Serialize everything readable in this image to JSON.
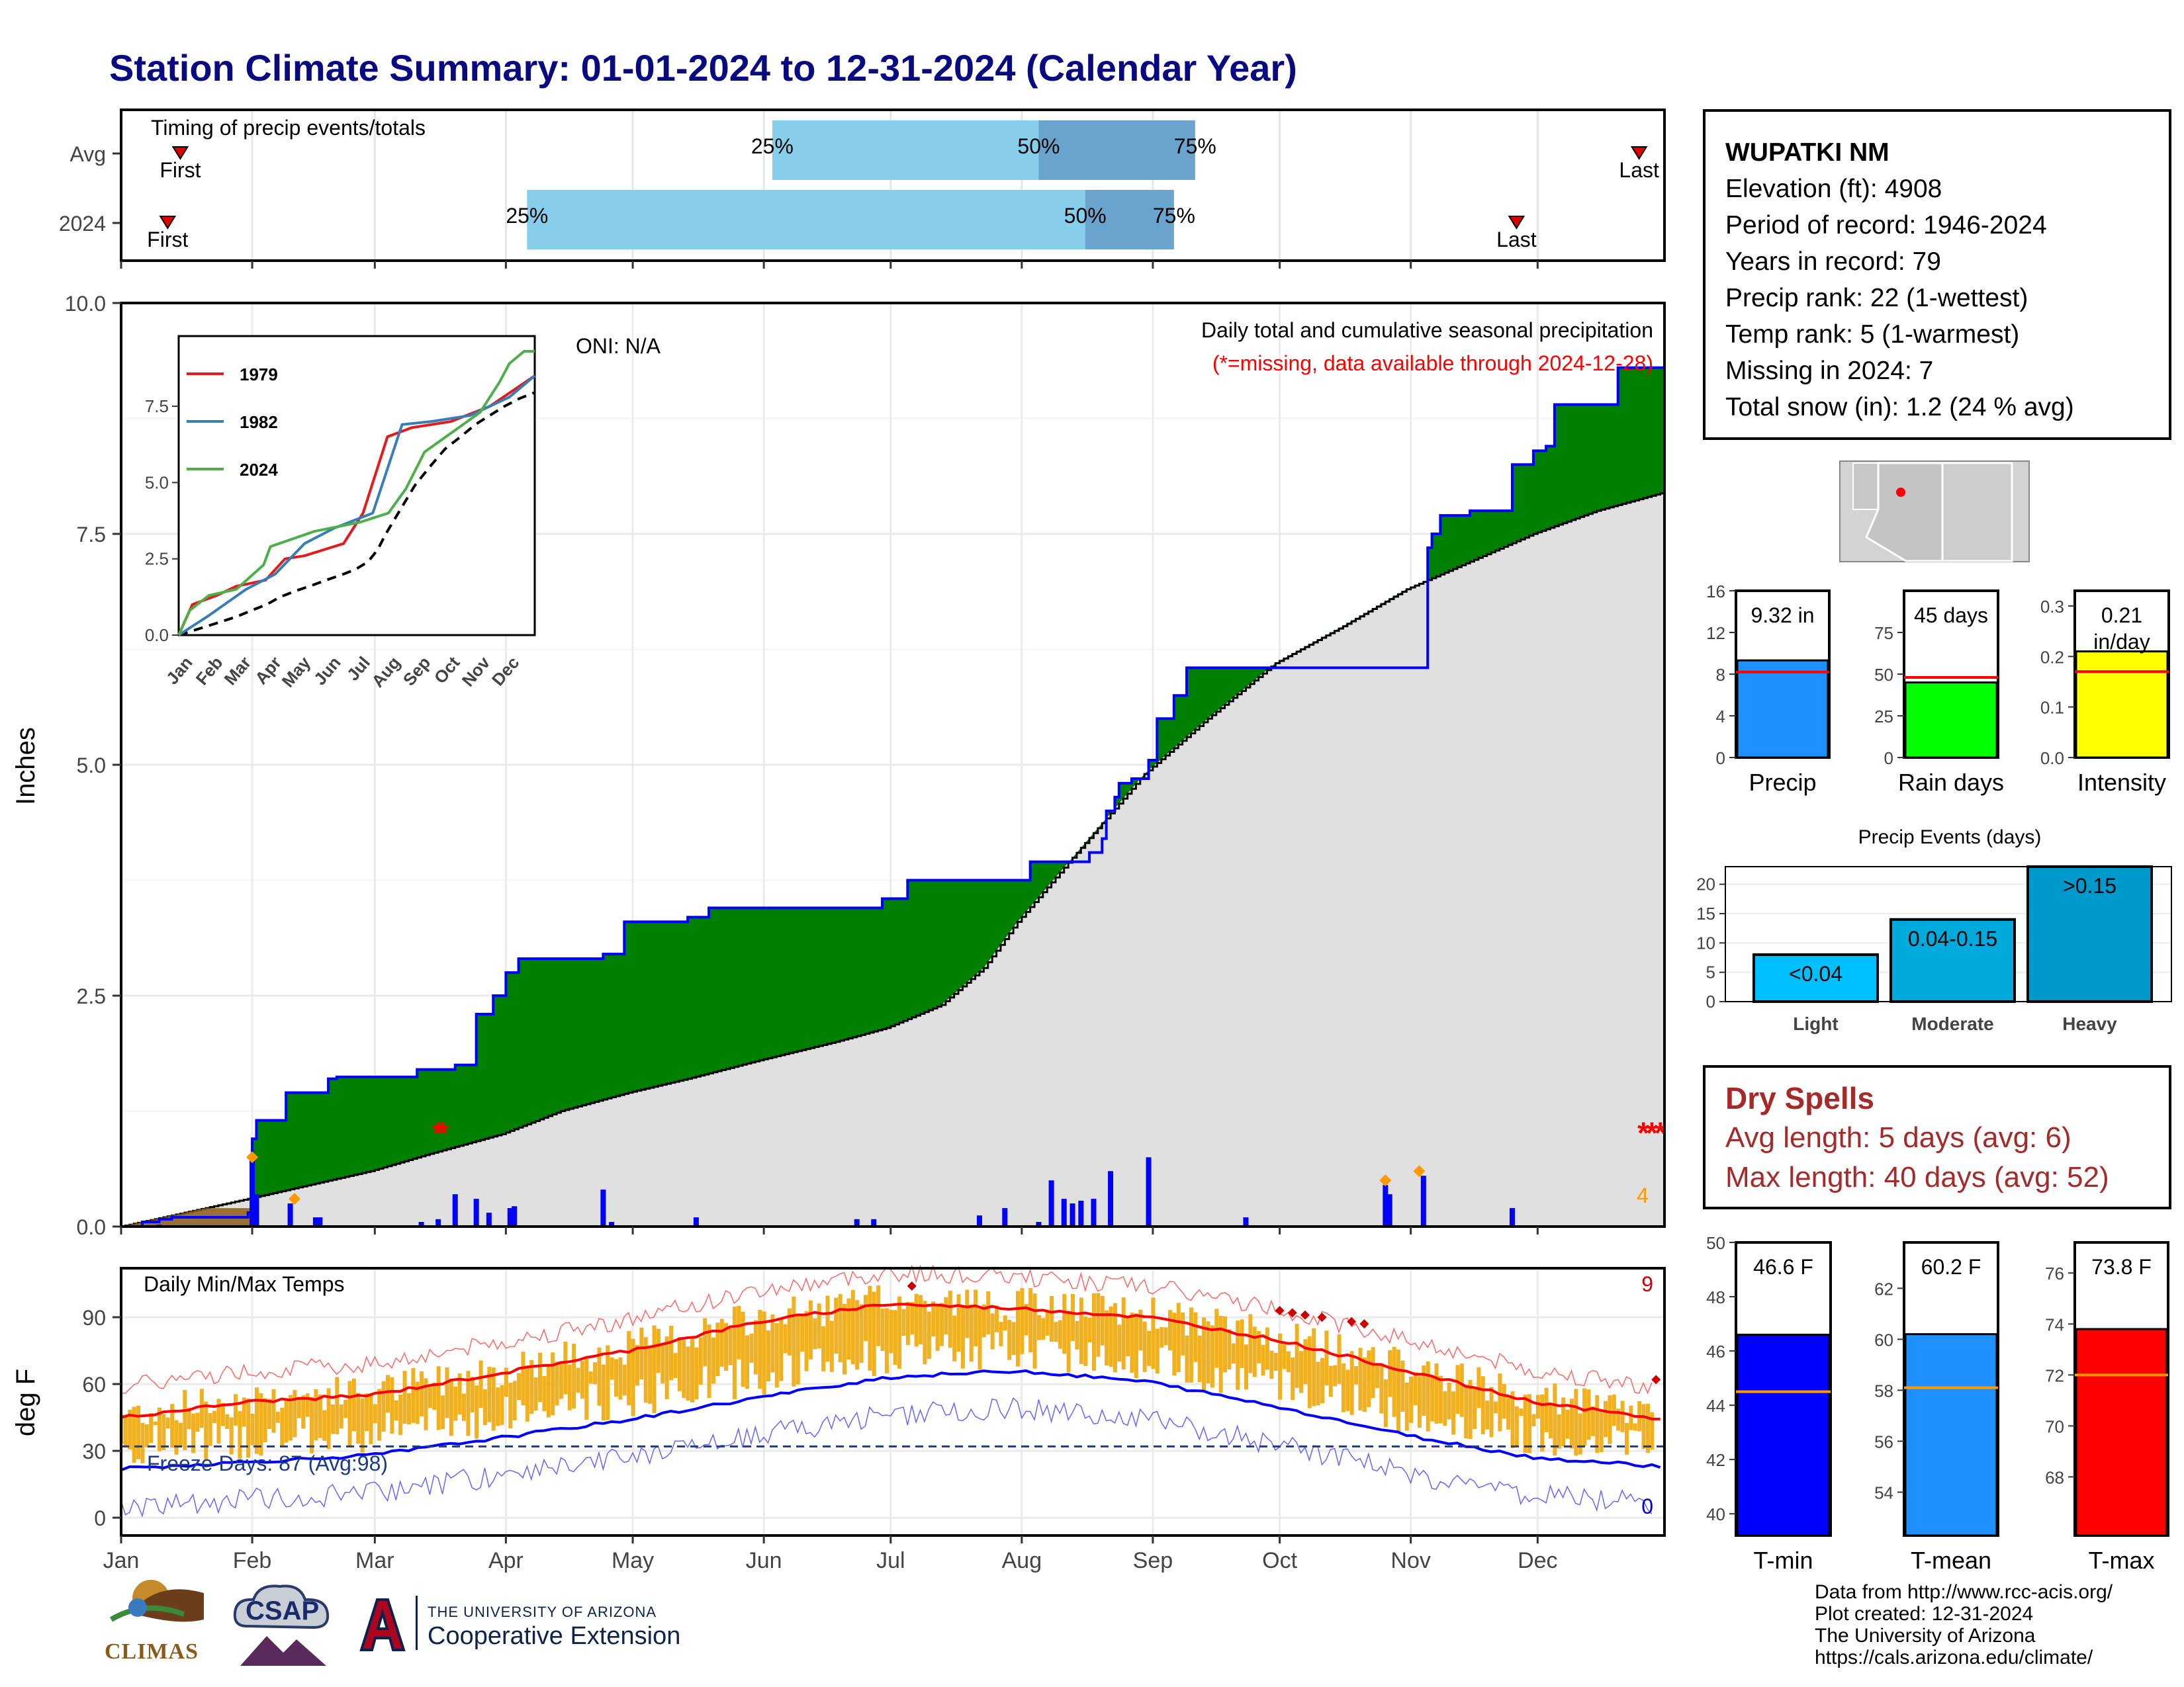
{
  "title": "Station Climate Summary: 01-01-2024 to 12-31-2024 (Calendar Year)",
  "station": {
    "name": "WUPATKI NM",
    "lines": [
      "Elevation (ft): 4908",
      "Period of record: 1946-2024",
      "Years in record: 79",
      "Precip rank: 22 (1-wettest)",
      "Temp rank: 5 (1-warmest)",
      "Missing in 2024: 7",
      "Total snow (in): 1.2 (24 % avg)"
    ]
  },
  "dry_spells": {
    "title": "Dry Spells",
    "avg": "Avg length: 5 days (avg: 6)",
    "max": "Max length: 40 days (avg: 52)"
  },
  "credits": [
    "Data from http://www.rcc-acis.org/",
    "Plot created: 12-31-2024",
    "The University of Arizona",
    "https://cals.arizona.edu/climate/"
  ],
  "logos": {
    "climas": "CLIMAS",
    "csap": "CSAP",
    "ua_line1": "THE UNIVERSITY OF ARIZONA",
    "ua_line2": "Cooperative Extension"
  },
  "colors": {
    "dark_blue": "#0a0a80",
    "green": "#008000",
    "gray": "#e0e0e0",
    "blue": "#0000ff",
    "light_blue": "#87ceeb",
    "mid_blue": "#6aa4cc",
    "gold": "#f0b020",
    "red": "#ff0000",
    "precip_bar": "#1e90ff",
    "raindays_bar": "#00ff00",
    "intensity_bar": "#ffff00",
    "tmin": "#0000ff",
    "tmean": "#1e90ff",
    "tmax": "#ff0000",
    "event_bar": "#00aadd"
  },
  "chart_data": [
    {
      "type": "bar",
      "title": "Timing of precip events/totals",
      "categories": [
        "Avg",
        "2024"
      ],
      "rows": [
        {
          "label": "Avg",
          "first_day": 15,
          "q25_day": 155,
          "q50_day": 218,
          "q75_day": 255,
          "last_day": 360,
          "labels": {
            "first": "First",
            "q25": "25%",
            "q50": "50%",
            "q75": "75%",
            "last": "Last"
          }
        },
        {
          "label": "2024",
          "first_day": 12,
          "q25_day": 97,
          "q50_day": 229,
          "q75_day": 250,
          "last_day": 331,
          "labels": {
            "first": "First",
            "q25": "25%",
            "q50": "50%",
            "q75": "75%",
            "last": "Last"
          }
        }
      ]
    },
    {
      "type": "area",
      "title": "Daily total and cumulative seasonal precipitation",
      "subtitle": "(*=missing, data available through 2024-12-28)",
      "ylabel": "Inches",
      "ylim": [
        0,
        10
      ],
      "yticks": [
        "0.0",
        "2.5",
        "5.0",
        "7.5",
        "10.0"
      ],
      "oni": "ONI: N/A",
      "snow_marker_count": "4",
      "cumulative_2024": [
        [
          1,
          0
        ],
        [
          6,
          0.05
        ],
        [
          10,
          0.08
        ],
        [
          13,
          0.1
        ],
        [
          31,
          0.15
        ],
        [
          32,
          0.95
        ],
        [
          33,
          1.15
        ],
        [
          40,
          1.45
        ],
        [
          50,
          1.6
        ],
        [
          52,
          1.62
        ],
        [
          70,
          1.62
        ],
        [
          71,
          1.7
        ],
        [
          80,
          1.75
        ],
        [
          85,
          1.92
        ],
        [
          85,
          2.3
        ],
        [
          89,
          2.5
        ],
        [
          92,
          2.75
        ],
        [
          95,
          2.9
        ],
        [
          110,
          2.9
        ],
        [
          115,
          2.95
        ],
        [
          120,
          3.3
        ],
        [
          135,
          3.35
        ],
        [
          140,
          3.45
        ],
        [
          170,
          3.45
        ],
        [
          180,
          3.45
        ],
        [
          181,
          3.55
        ],
        [
          186,
          3.55
        ],
        [
          187,
          3.75
        ],
        [
          215,
          3.75
        ],
        [
          216,
          3.95
        ],
        [
          225,
          3.95
        ],
        [
          230,
          4.05
        ],
        [
          233,
          4.2
        ],
        [
          234,
          4.5
        ],
        [
          236,
          4.65
        ],
        [
          237,
          4.8
        ],
        [
          240,
          4.85
        ],
        [
          244,
          5.05
        ],
        [
          246,
          5.5
        ],
        [
          250,
          5.55
        ],
        [
          250,
          5.75
        ],
        [
          253,
          6.05
        ],
        [
          270,
          6.05
        ],
        [
          280,
          6.05
        ],
        [
          285,
          6.05
        ],
        [
          300,
          6.05
        ],
        [
          309,
          6.05
        ],
        [
          310,
          7.35
        ],
        [
          311,
          7.5
        ],
        [
          313,
          7.7
        ],
        [
          320,
          7.75
        ],
        [
          330,
          8.25
        ],
        [
          335,
          8.4
        ],
        [
          338,
          8.45
        ],
        [
          340,
          8.9
        ],
        [
          350,
          8.9
        ],
        [
          354,
          8.9
        ],
        [
          355,
          9.3
        ],
        [
          366,
          9.3
        ]
      ],
      "cumulative_avg": [
        [
          1,
          0
        ],
        [
          31,
          0.3
        ],
        [
          60,
          0.6
        ],
        [
          75,
          0.8
        ],
        [
          91,
          1.0
        ],
        [
          105,
          1.25
        ],
        [
          121,
          1.45
        ],
        [
          135,
          1.6
        ],
        [
          152,
          1.8
        ],
        [
          170,
          2.0
        ],
        [
          182,
          2.15
        ],
        [
          195,
          2.4
        ],
        [
          205,
          2.8
        ],
        [
          213,
          3.3
        ],
        [
          228,
          4.1
        ],
        [
          243,
          4.9
        ],
        [
          258,
          5.5
        ],
        [
          274,
          6.1
        ],
        [
          290,
          6.5
        ],
        [
          305,
          6.9
        ],
        [
          320,
          7.2
        ],
        [
          335,
          7.5
        ],
        [
          350,
          7.75
        ],
        [
          366,
          7.95
        ]
      ],
      "daily_precip": [
        [
          10,
          0.02
        ],
        [
          32,
          0.75
        ],
        [
          33,
          0.35
        ],
        [
          41,
          0.25
        ],
        [
          47,
          0.1
        ],
        [
          48,
          0.1
        ],
        [
          72,
          0.05
        ],
        [
          76,
          0.08
        ],
        [
          80,
          0.35
        ],
        [
          85,
          0.3
        ],
        [
          88,
          0.15
        ],
        [
          93,
          0.2
        ],
        [
          94,
          0.22
        ],
        [
          115,
          0.4
        ],
        [
          117,
          0.05
        ],
        [
          137,
          0.1
        ],
        [
          175,
          0.08
        ],
        [
          179,
          0.08
        ],
        [
          204,
          0.12
        ],
        [
          210,
          0.2
        ],
        [
          218,
          0.05
        ],
        [
          221,
          0.5
        ],
        [
          224,
          0.3
        ],
        [
          226,
          0.25
        ],
        [
          228,
          0.28
        ],
        [
          231,
          0.3
        ],
        [
          235,
          0.6
        ],
        [
          244,
          0.75
        ],
        [
          267,
          0.1
        ],
        [
          300,
          0.45
        ],
        [
          301,
          0.35
        ],
        [
          309,
          0.55
        ],
        [
          330,
          0.2
        ]
      ],
      "missing_days": [
        76,
        77,
        361,
        363,
        365
      ]
    },
    {
      "type": "line",
      "title": "Daily Min/Max Temps",
      "ylabel": "deg F",
      "ylim": [
        -8,
        112
      ],
      "yticks": [
        "0",
        "30",
        "60",
        "90"
      ],
      "x_ticks": [
        "Jan",
        "Feb",
        "Mar",
        "Apr",
        "May",
        "Jun",
        "Jul",
        "Aug",
        "Sep",
        "Oct",
        "Nov",
        "Dec"
      ],
      "freeze_days": "Freeze Days: 87 (Avg:98)",
      "record_high_count": "9",
      "record_low_count": "0",
      "avg_max": [
        [
          1,
          45
        ],
        [
          31,
          52
        ],
        [
          60,
          55
        ],
        [
          91,
          65
        ],
        [
          121,
          75
        ],
        [
          152,
          88
        ],
        [
          182,
          96
        ],
        [
          213,
          94
        ],
        [
          244,
          90
        ],
        [
          274,
          80
        ],
        [
          305,
          66
        ],
        [
          335,
          52
        ],
        [
          366,
          44
        ]
      ],
      "avg_min": [
        [
          1,
          22
        ],
        [
          31,
          25
        ],
        [
          60,
          28
        ],
        [
          91,
          36
        ],
        [
          121,
          44
        ],
        [
          152,
          54
        ],
        [
          182,
          63
        ],
        [
          213,
          66
        ],
        [
          244,
          61
        ],
        [
          274,
          50
        ],
        [
          305,
          37
        ],
        [
          335,
          27
        ],
        [
          366,
          23
        ]
      ],
      "threshold": 32
    },
    {
      "type": "line",
      "title": "Inset cumulative precipitation",
      "series": [
        {
          "name": "1979",
          "values": [
            [
              1,
              0
            ],
            [
              15,
              1.0
            ],
            [
              40,
              1.3
            ],
            [
              60,
              1.6
            ],
            [
              90,
              1.8
            ],
            [
              110,
              2.5
            ],
            [
              130,
              2.6
            ],
            [
              170,
              3.0
            ],
            [
              190,
              4.0
            ],
            [
              215,
              6.5
            ],
            [
              240,
              6.8
            ],
            [
              280,
              7.0
            ],
            [
              320,
              7.5
            ],
            [
              366,
              8.5
            ]
          ]
        },
        {
          "name": "1982",
          "values": [
            [
              1,
              0
            ],
            [
              30,
              0.6
            ],
            [
              70,
              1.5
            ],
            [
              100,
              2.0
            ],
            [
              130,
              3.0
            ],
            [
              160,
              3.5
            ],
            [
              200,
              4.0
            ],
            [
              230,
              6.9
            ],
            [
              260,
              7.0
            ],
            [
              300,
              7.2
            ],
            [
              340,
              7.8
            ],
            [
              366,
              8.5
            ]
          ]
        },
        {
          "name": "2024",
          "values": [
            [
              1,
              0
            ],
            [
              12,
              0.8
            ],
            [
              32,
              1.3
            ],
            [
              60,
              1.5
            ],
            [
              88,
              2.3
            ],
            [
              95,
              2.9
            ],
            [
              140,
              3.4
            ],
            [
              187,
              3.7
            ],
            [
              216,
              4.0
            ],
            [
              234,
              4.8
            ],
            [
              253,
              6.0
            ],
            [
              310,
              7.3
            ],
            [
              330,
              8.3
            ],
            [
              340,
              8.9
            ],
            [
              355,
              9.3
            ],
            [
              366,
              9.3
            ]
          ]
        }
      ],
      "yticks": [
        "0.0",
        "2.5",
        "5.0",
        "7.5"
      ],
      "x_ticks": [
        "Jan",
        "Feb",
        "Mar",
        "Apr",
        "May",
        "Jun",
        "Jul",
        "Aug",
        "Sep",
        "Oct",
        "Nov",
        "Dec"
      ]
    },
    {
      "type": "bar",
      "categories": [
        "Precip",
        "Rain days",
        "Intensity"
      ],
      "values": [
        9.32,
        45,
        0.21
      ],
      "averages": [
        8.2,
        48,
        0.17
      ],
      "labels": [
        "9.32 in",
        "45 days",
        "0.21 in/day"
      ],
      "ylims": [
        [
          0,
          16
        ],
        [
          0,
          100
        ],
        [
          0,
          0.33
        ]
      ],
      "yticks": [
        [
          "0",
          "4",
          "8",
          "12",
          "16"
        ],
        [
          "0",
          "25",
          "50",
          "75"
        ],
        [
          "0.0",
          "0.1",
          "0.2",
          "0.3"
        ]
      ]
    },
    {
      "type": "bar",
      "title": "Precip Events (days)",
      "categories": [
        "Light",
        "Moderate",
        "Heavy"
      ],
      "values": [
        8,
        14,
        23
      ],
      "bar_labels": [
        "<0.04",
        "0.04-0.15",
        ">0.15"
      ],
      "ylim": [
        0,
        23
      ],
      "yticks": [
        "0",
        "5",
        "10",
        "15",
        "20"
      ]
    },
    {
      "type": "bar",
      "categories": [
        "T-min",
        "T-mean",
        "T-max"
      ],
      "values": [
        46.6,
        60.2,
        73.8
      ],
      "averages": [
        44.5,
        58.1,
        72.0
      ],
      "labels": [
        "46.6 F",
        "60.2 F",
        "73.8 F"
      ],
      "ylims": [
        [
          39.2,
          50
        ],
        [
          52.3,
          63.8
        ],
        [
          65.7,
          77.2
        ]
      ],
      "yticks": [
        [
          "40",
          "42",
          "44",
          "46",
          "48",
          "50"
        ],
        [
          "54",
          "56",
          "58",
          "60",
          "62"
        ],
        [
          "68",
          "70",
          "72",
          "74",
          "76"
        ]
      ]
    }
  ]
}
